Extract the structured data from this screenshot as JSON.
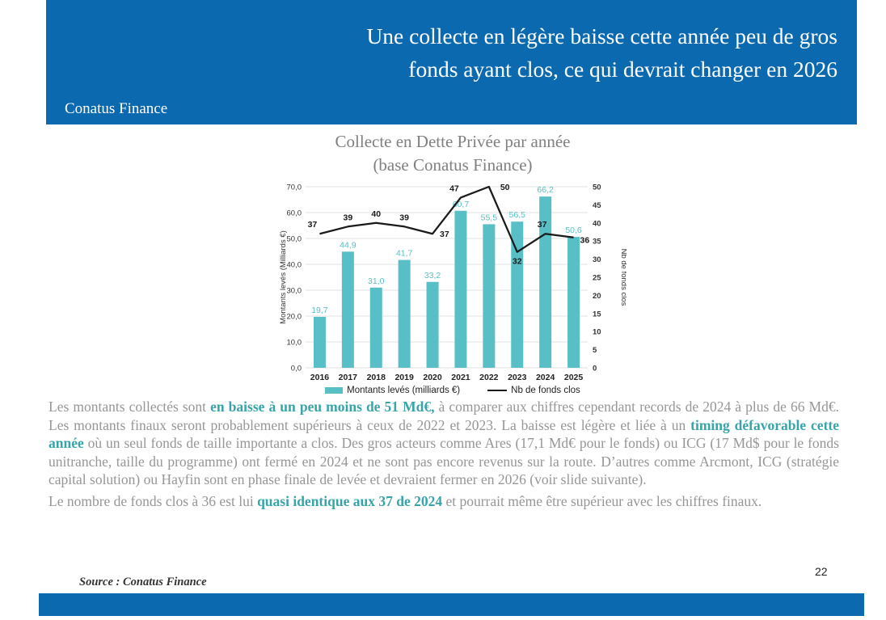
{
  "header": {
    "title_line1": "Une collecte en légère baisse cette année peu de gros",
    "title_line2": "fonds ayant clos, ce qui devrait changer en 2026",
    "brand": "Conatus Finance"
  },
  "chart": {
    "title_line1": "Collecte en Dette Privée par année",
    "title_line2": "(base Conatus Finance)"
  },
  "chart_data": {
    "type": "bar",
    "subtype": "bar-line-combo",
    "title": "Collecte en Dette Privée par année (base Conatus Finance)",
    "categories": [
      "2016",
      "2017",
      "2018",
      "2019",
      "2020",
      "2021",
      "2022",
      "2023",
      "2024",
      "2025"
    ],
    "series": [
      {
        "name": "Montants levés (milliards €)",
        "type": "bar",
        "axis": "left",
        "values": [
          19.7,
          44.9,
          31.0,
          41.7,
          33.2,
          60.7,
          55.5,
          56.5,
          66.2,
          50.6
        ],
        "labels": [
          "19,7",
          "44,9",
          "31,0",
          "41,7",
          "33,2",
          "60,7",
          "55,5",
          "56,5",
          "66,2",
          "50,6"
        ]
      },
      {
        "name": "Nb de fonds clos",
        "type": "line",
        "axis": "right",
        "values": [
          37,
          39,
          40,
          39,
          37,
          47,
          50,
          32,
          37,
          36
        ],
        "labels": [
          "37",
          "39",
          "40",
          "39",
          "37",
          "47",
          "50",
          "32",
          "37",
          "36"
        ]
      }
    ],
    "left_axis": {
      "label": "Montants levés (Milliards €)",
      "min": 0,
      "max": 70,
      "step": 10,
      "tick_labels": [
        "0,0",
        "10,0",
        "20,0",
        "30,0",
        "40,0",
        "50,0",
        "60,0",
        "70,0"
      ]
    },
    "right_axis": {
      "label": "Nb de fonds clos",
      "min": 0,
      "max": 50,
      "step": 5,
      "tick_labels": [
        "0",
        "5",
        "10",
        "15",
        "20",
        "25",
        "30",
        "35",
        "40",
        "45",
        "50"
      ]
    },
    "grid": true,
    "legend_position": "bottom"
  },
  "body": {
    "paragraphs": [
      {
        "runs": [
          {
            "text": "Les montants collectés sont "
          },
          {
            "text": "en baisse à un peu moins de 51 Md€,",
            "accent": true
          },
          {
            "text": " à comparer aux chiffres cependant records de 2024 à plus de 66 Md€. Les montants finaux seront probablement supérieurs à ceux de 2022 et 2023. La baisse est légère et liée à un "
          },
          {
            "text": "timing défavorable cette année",
            "accent": true
          },
          {
            "text": " où un seul fonds de taille importante a clos. Des gros acteurs comme Ares (17,1 Md€ pour le fonds) ou ICG (17 Md$ pour le fonds unitranche, taille du programme) ont fermé en 2024 et ne sont pas encore revenus sur la route. D’autres comme Arcmont, ICG (stratégie capital solution) ou Hayfin sont en phase finale de levée et devraient fermer en 2026 (voir slide suivante)."
          }
        ]
      },
      {
        "runs": [
          {
            "text": "Le nombre de fonds clos à 36 est lui "
          },
          {
            "text": "quasi identique aux 37 de 2024",
            "accent": true
          },
          {
            "text": " et pourrait même être supérieur avec les chiffres finaux."
          }
        ]
      }
    ]
  },
  "footer": {
    "source": "Source : Conatus Finance",
    "page_number": "22"
  },
  "colors": {
    "banner_blue": "#0A69AF",
    "bar_teal": "#57BFC5",
    "line_black": "#1A1A1A",
    "accent_teal": "#36A5AA",
    "body_gray": "#969696",
    "chart_title_gray": "#808080",
    "grid_gray": "#E2E2E2",
    "tick_gray": "#333333"
  }
}
